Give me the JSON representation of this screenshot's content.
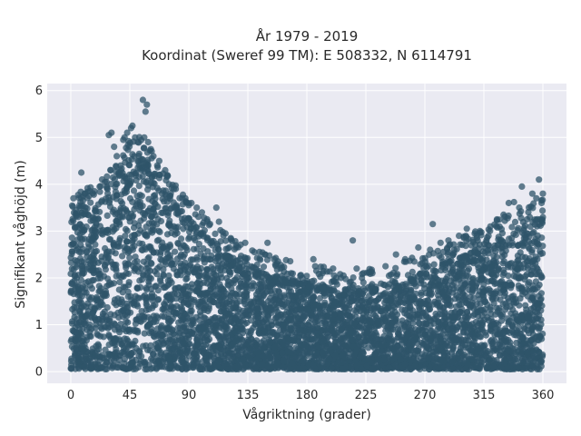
{
  "chart_data": {
    "type": "scatter",
    "title_lines": [
      "År 1979 - 2019",
      "Koordinat (Sweref 99 TM): E 508332, N 6114791"
    ],
    "xlabel": "Vågriktning (grader)",
    "ylabel": "Signifikant våghöjd (m)",
    "xlim": [
      -18,
      378
    ],
    "ylim": [
      -0.25,
      6.15
    ],
    "xticks": [
      0,
      45,
      90,
      135,
      180,
      225,
      270,
      315,
      360
    ],
    "yticks": [
      0,
      1,
      2,
      3,
      4,
      5,
      6
    ],
    "grid": true,
    "legend": "none",
    "colors": {
      "background": "#eaeaf2",
      "grid": "#ffffff",
      "marker": "#2f5469"
    },
    "point_density_description_omitted": true,
    "envelope": [
      [
        0,
        3.3
      ],
      [
        10,
        3.5
      ],
      [
        20,
        3.6
      ],
      [
        30,
        3.9
      ],
      [
        40,
        4.3
      ],
      [
        45,
        4.6
      ],
      [
        50,
        4.7
      ],
      [
        55,
        4.5
      ],
      [
        60,
        4.4
      ],
      [
        70,
        4.0
      ],
      [
        80,
        3.6
      ],
      [
        90,
        3.3
      ],
      [
        100,
        3.0
      ],
      [
        110,
        2.7
      ],
      [
        120,
        2.5
      ],
      [
        135,
        2.3
      ],
      [
        150,
        2.1
      ],
      [
        165,
        2.0
      ],
      [
        180,
        1.9
      ],
      [
        200,
        1.8
      ],
      [
        225,
        1.8
      ],
      [
        240,
        1.9
      ],
      [
        255,
        2.0
      ],
      [
        270,
        2.1
      ],
      [
        285,
        2.3
      ],
      [
        300,
        2.5
      ],
      [
        315,
        2.7
      ],
      [
        330,
        2.9
      ],
      [
        345,
        3.1
      ],
      [
        360,
        3.3
      ]
    ],
    "outliers": [
      [
        2,
        3.7
      ],
      [
        4,
        3.45
      ],
      [
        8,
        4.25
      ],
      [
        14,
        3.75
      ],
      [
        18,
        3.85
      ],
      [
        22,
        3.95
      ],
      [
        26,
        4.05
      ],
      [
        29,
        5.05
      ],
      [
        31,
        5.1
      ],
      [
        33,
        4.8
      ],
      [
        35,
        4.6
      ],
      [
        38,
        4.4
      ],
      [
        40,
        4.95
      ],
      [
        41,
        5.0
      ],
      [
        43,
        5.1
      ],
      [
        46,
        5.2
      ],
      [
        47,
        5.25
      ],
      [
        49,
        5.0
      ],
      [
        51,
        4.9
      ],
      [
        55,
        5.8
      ],
      [
        57,
        5.55
      ],
      [
        58,
        5.7
      ],
      [
        56,
        5.0
      ],
      [
        59,
        4.9
      ],
      [
        61,
        4.75
      ],
      [
        63,
        4.6
      ],
      [
        66,
        4.4
      ],
      [
        68,
        4.2
      ],
      [
        72,
        4.3
      ],
      [
        75,
        4.0
      ],
      [
        80,
        3.9
      ],
      [
        85,
        3.7
      ],
      [
        92,
        3.6
      ],
      [
        96,
        3.5
      ],
      [
        100,
        3.4
      ],
      [
        104,
        3.25
      ],
      [
        111,
        3.5
      ],
      [
        113,
        3.2
      ],
      [
        118,
        2.95
      ],
      [
        122,
        2.85
      ],
      [
        126,
        2.7
      ],
      [
        133,
        2.75
      ],
      [
        140,
        2.55
      ],
      [
        148,
        2.5
      ],
      [
        150,
        2.75
      ],
      [
        155,
        2.4
      ],
      [
        160,
        2.2
      ],
      [
        168,
        2.1
      ],
      [
        175,
        2.05
      ],
      [
        185,
        2.4
      ],
      [
        192,
        2.1
      ],
      [
        200,
        2.2
      ],
      [
        208,
        2.05
      ],
      [
        215,
        2.8
      ],
      [
        218,
        2.2
      ],
      [
        222,
        2.0
      ],
      [
        230,
        2.1
      ],
      [
        240,
        2.25
      ],
      [
        248,
        2.5
      ],
      [
        255,
        2.4
      ],
      [
        262,
        2.35
      ],
      [
        265,
        2.65
      ],
      [
        274,
        2.6
      ],
      [
        276,
        3.15
      ],
      [
        282,
        2.75
      ],
      [
        288,
        2.8
      ],
      [
        296,
        2.9
      ],
      [
        302,
        3.05
      ],
      [
        308,
        2.95
      ],
      [
        312,
        3.0
      ],
      [
        320,
        3.1
      ],
      [
        325,
        3.25
      ],
      [
        330,
        3.35
      ],
      [
        334,
        3.6
      ],
      [
        338,
        3.62
      ],
      [
        342,
        3.5
      ],
      [
        344,
        3.95
      ],
      [
        348,
        3.25
      ],
      [
        350,
        3.3
      ],
      [
        352,
        3.8
      ],
      [
        355,
        3.7
      ],
      [
        357,
        4.1
      ],
      [
        359,
        3.6
      ],
      [
        361,
        3.8
      ],
      [
        362,
        3.3
      ]
    ]
  }
}
